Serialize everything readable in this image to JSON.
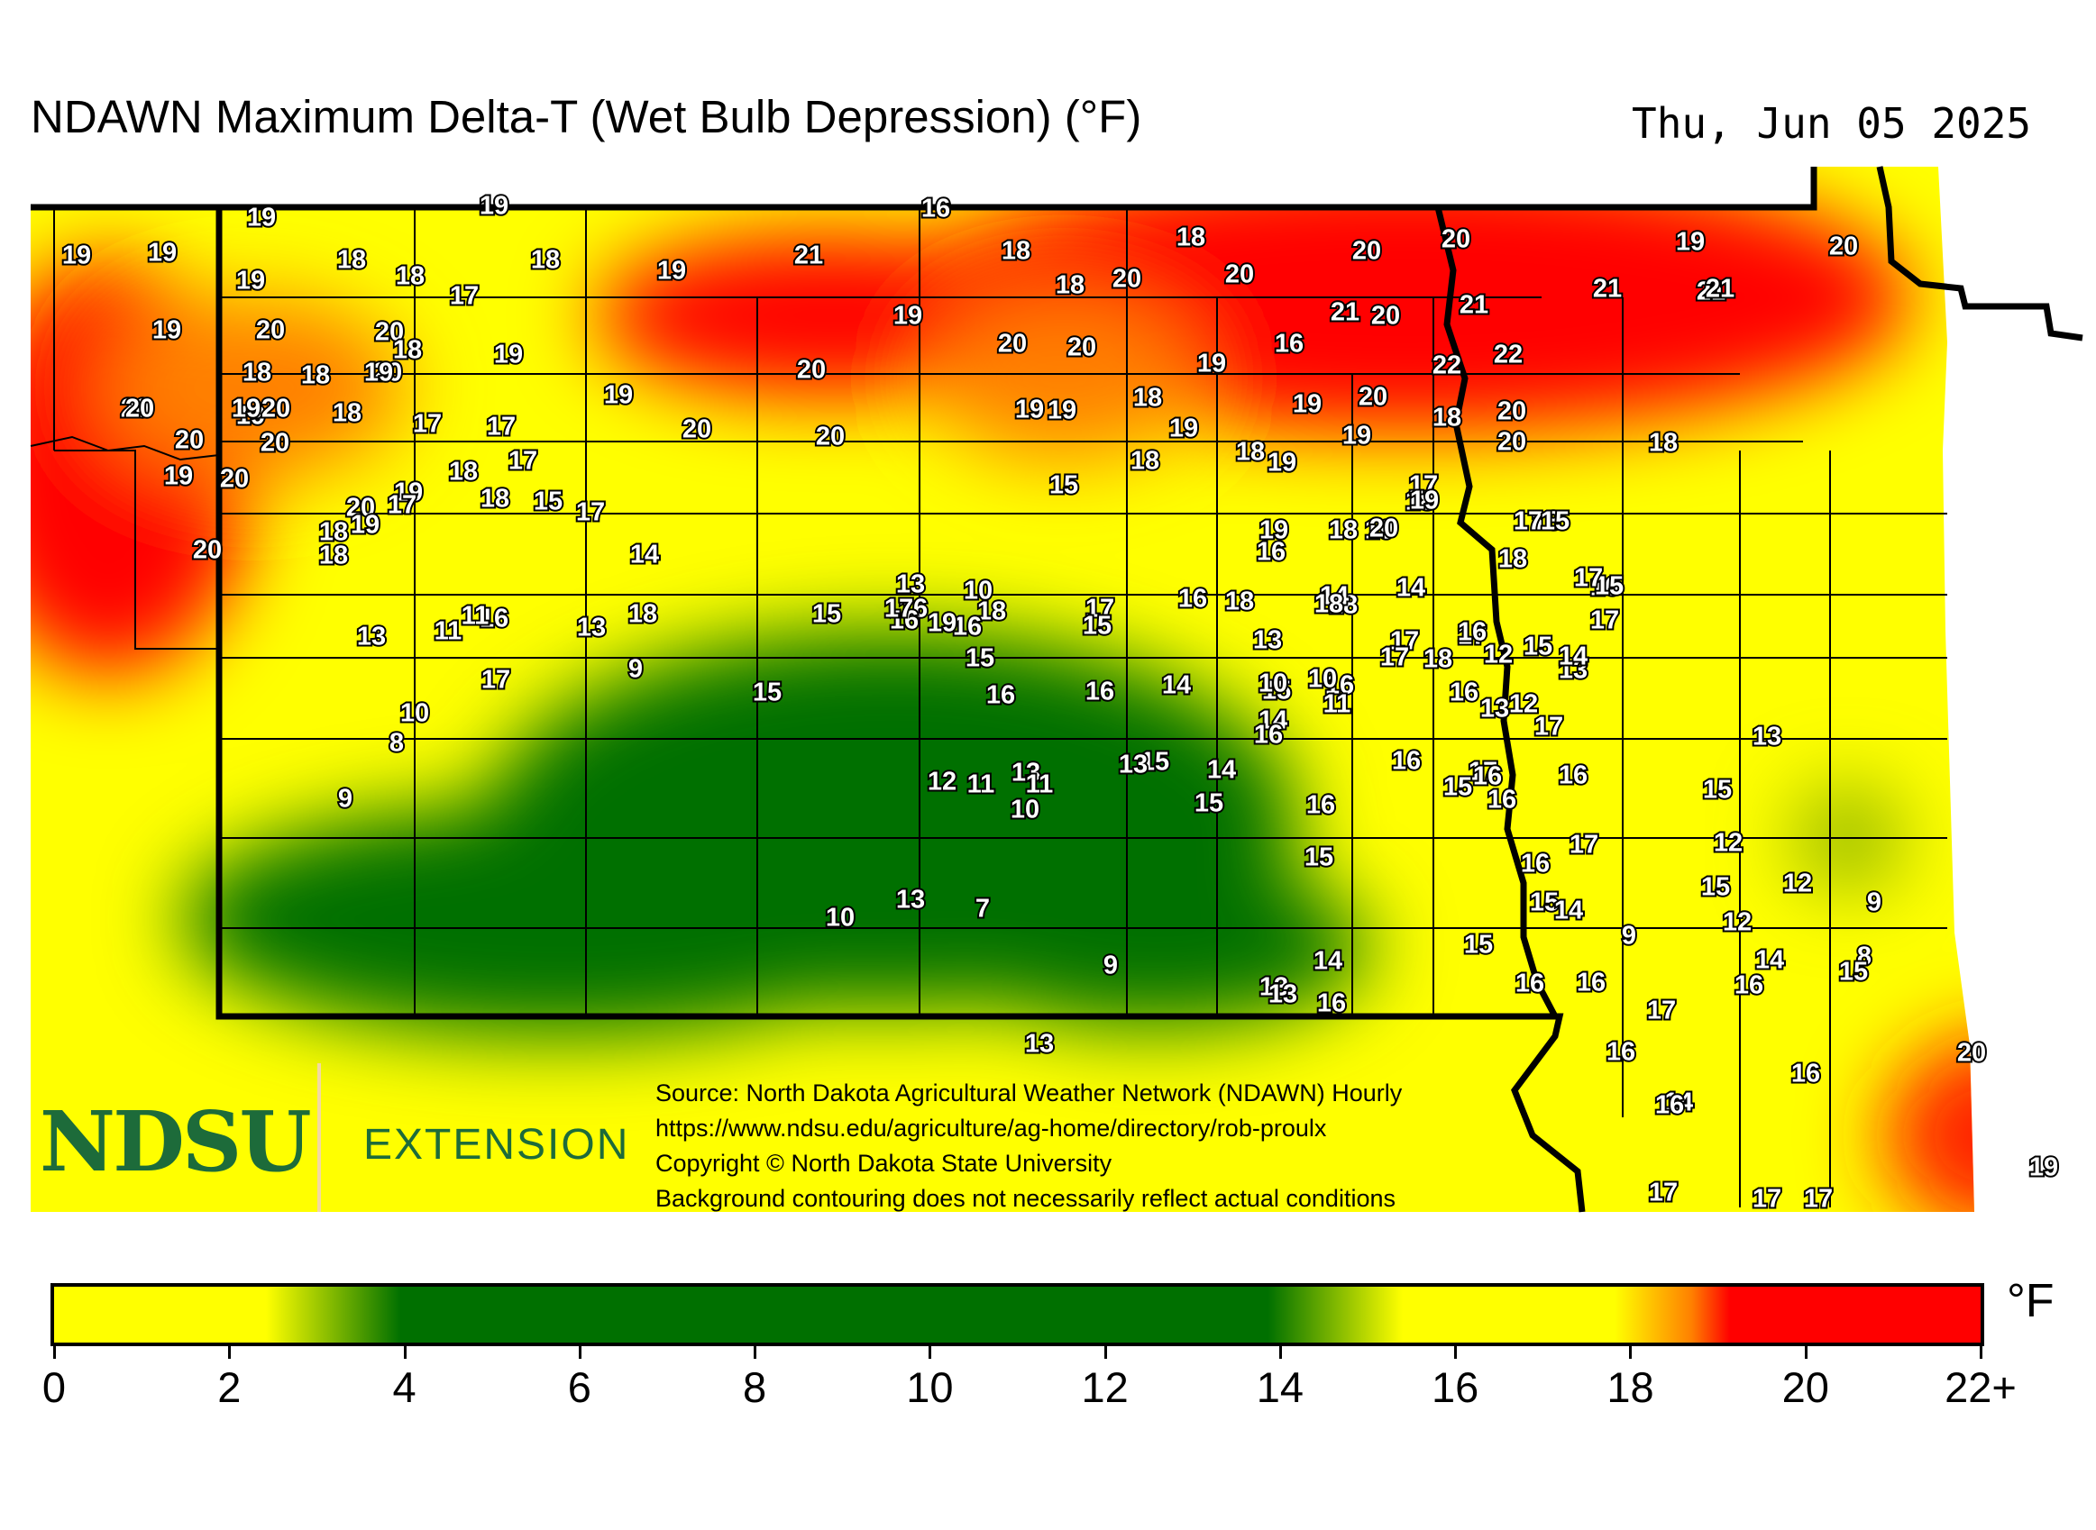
{
  "title": "NDAWN Maximum Delta-T (Wet Bulb Depression) (°F)",
  "date": "Thu, Jun 05 2025",
  "logo": {
    "name": "NDSU",
    "extension": "EXTENSION"
  },
  "info_lines": [
    "Source: North Dakota Agricultural Weather Network (NDAWN) Hourly",
    "https://www.ndsu.edu/agriculture/ag-home/directory/rob-proulx",
    "Copyright © North Dakota State University",
    "Background contouring does not necessarily reflect actual conditions"
  ],
  "legend": {
    "unit": "°F",
    "ticks": [
      "0",
      "2",
      "4",
      "6",
      "8",
      "10",
      "12",
      "14",
      "16",
      "18",
      "20",
      "22+"
    ],
    "colors": {
      "low": "#ffff00",
      "mid": "#007000",
      "high": "#ff0000",
      "orange": "#ff8000"
    }
  },
  "stations": [
    {
      "v": "19"
    },
    {
      "v": "19"
    },
    {
      "v": "19"
    },
    {
      "v": "19"
    },
    {
      "v": "20"
    },
    {
      "v": "20"
    },
    {
      "v": "20"
    },
    {
      "v": "20"
    },
    {
      "v": "19"
    },
    {
      "v": "18"
    },
    {
      "v": "16"
    },
    {
      "v": "19"
    },
    {
      "v": "18"
    },
    {
      "v": "18"
    },
    {
      "v": "17"
    },
    {
      "v": "18"
    },
    {
      "v": "19"
    },
    {
      "v": "21"
    },
    {
      "v": "18"
    },
    {
      "v": "18"
    },
    {
      "v": "20"
    },
    {
      "v": "18"
    },
    {
      "v": "20"
    },
    {
      "v": "20"
    },
    {
      "v": "20"
    },
    {
      "v": "19"
    },
    {
      "v": "20"
    },
    {
      "v": "21"
    },
    {
      "v": "20"
    },
    {
      "v": "21"
    },
    {
      "v": "21"
    },
    {
      "v": "21"
    },
    {
      "v": "19"
    },
    {
      "v": "20"
    },
    {
      "v": "18"
    },
    {
      "v": "19"
    },
    {
      "v": "18"
    },
    {
      "v": "19"
    },
    {
      "v": "20"
    },
    {
      "v": "21"
    },
    {
      "v": "20"
    },
    {
      "v": "19"
    },
    {
      "v": "16"
    },
    {
      "v": "22"
    },
    {
      "v": "22"
    },
    {
      "v": "19"
    },
    {
      "v": "19"
    },
    {
      "v": "20"
    },
    {
      "v": "20"
    },
    {
      "v": "19"
    },
    {
      "v": "18"
    },
    {
      "v": "19"
    },
    {
      "v": "18"
    },
    {
      "v": "20"
    },
    {
      "v": "20"
    },
    {
      "v": "19"
    },
    {
      "v": "18"
    },
    {
      "v": "17"
    },
    {
      "v": "17"
    },
    {
      "v": "20"
    },
    {
      "v": "20"
    },
    {
      "v": "19"
    },
    {
      "v": "20"
    },
    {
      "v": "19"
    },
    {
      "v": "20"
    },
    {
      "v": "20"
    },
    {
      "v": "18"
    },
    {
      "v": "17"
    },
    {
      "v": "18"
    },
    {
      "v": "18"
    },
    {
      "v": "19"
    },
    {
      "v": "19"
    },
    {
      "v": "20"
    },
    {
      "v": "19"
    },
    {
      "v": "18"
    },
    {
      "v": "18"
    },
    {
      "v": "19"
    },
    {
      "v": "18"
    },
    {
      "v": "15"
    },
    {
      "v": "17"
    },
    {
      "v": "18"
    },
    {
      "v": "17"
    },
    {
      "v": "19"
    },
    {
      "v": "19"
    },
    {
      "v": "18"
    },
    {
      "v": "18"
    },
    {
      "v": "19"
    },
    {
      "v": "20"
    },
    {
      "v": "20"
    },
    {
      "v": "19"
    },
    {
      "v": "17"
    },
    {
      "v": "18"
    },
    {
      "v": "20"
    },
    {
      "v": "14"
    },
    {
      "v": "16"
    },
    {
      "v": "16"
    },
    {
      "v": "15"
    },
    {
      "v": "16"
    },
    {
      "v": "18"
    },
    {
      "v": "18"
    },
    {
      "v": "18"
    },
    {
      "v": "18"
    },
    {
      "v": "17"
    },
    {
      "v": "15"
    },
    {
      "v": "15"
    },
    {
      "v": "14"
    },
    {
      "v": "14"
    },
    {
      "v": "13"
    },
    {
      "v": "13"
    },
    {
      "v": "13"
    },
    {
      "v": "16"
    },
    {
      "v": "18"
    },
    {
      "v": "16"
    },
    {
      "v": "15"
    },
    {
      "v": "16"
    },
    {
      "v": "16"
    },
    {
      "v": "17"
    },
    {
      "v": "19"
    },
    {
      "v": "17"
    },
    {
      "v": "18"
    },
    {
      "v": "15"
    },
    {
      "v": "13"
    },
    {
      "v": "9"
    },
    {
      "v": "13"
    },
    {
      "v": "10"
    },
    {
      "v": "14"
    },
    {
      "v": "15"
    },
    {
      "v": "16"
    },
    {
      "v": "17"
    },
    {
      "v": "17"
    },
    {
      "v": "18"
    },
    {
      "v": "14"
    },
    {
      "v": "15"
    },
    {
      "v": "13"
    },
    {
      "v": "12"
    },
    {
      "v": "17"
    },
    {
      "v": "17"
    },
    {
      "v": "17"
    },
    {
      "v": "15"
    },
    {
      "v": "16"
    },
    {
      "v": "16"
    },
    {
      "v": "15"
    },
    {
      "v": "11"
    },
    {
      "v": "11"
    },
    {
      "v": "13"
    },
    {
      "v": "16"
    },
    {
      "v": "17"
    },
    {
      "v": "17"
    },
    {
      "v": "16"
    },
    {
      "v": "12"
    },
    {
      "v": "10"
    },
    {
      "v": "10"
    },
    {
      "v": "11"
    },
    {
      "v": "14"
    },
    {
      "v": "16"
    },
    {
      "v": "16"
    },
    {
      "v": "17"
    },
    {
      "v": "15"
    },
    {
      "v": "10"
    },
    {
      "v": "16"
    },
    {
      "v": "12"
    },
    {
      "v": "13"
    },
    {
      "v": "11"
    },
    {
      "v": "15"
    },
    {
      "v": "15"
    },
    {
      "v": "16"
    },
    {
      "v": "15"
    },
    {
      "v": "16"
    },
    {
      "v": "9"
    },
    {
      "v": "10"
    },
    {
      "v": "11"
    },
    {
      "v": "13"
    },
    {
      "v": "14"
    },
    {
      "v": "15"
    },
    {
      "v": "16"
    },
    {
      "v": "17"
    },
    {
      "v": "12"
    },
    {
      "v": "12"
    },
    {
      "v": "9"
    },
    {
      "v": "8"
    },
    {
      "v": "13"
    },
    {
      "v": "13"
    },
    {
      "v": "16"
    },
    {
      "v": "15"
    },
    {
      "v": "15"
    },
    {
      "v": "15"
    },
    {
      "v": "14"
    },
    {
      "v": "12"
    },
    {
      "v": "8"
    },
    {
      "v": "9"
    },
    {
      "v": "16"
    },
    {
      "v": "15"
    },
    {
      "v": "14"
    },
    {
      "v": "10"
    },
    {
      "v": "7"
    },
    {
      "v": "9"
    },
    {
      "v": "13"
    },
    {
      "v": "14"
    },
    {
      "v": "13"
    },
    {
      "v": "16"
    },
    {
      "v": "16"
    },
    {
      "v": "16"
    },
    {
      "v": "17"
    },
    {
      "v": "16"
    },
    {
      "v": "20"
    },
    {
      "v": "16"
    },
    {
      "v": "14"
    },
    {
      "v": "16"
    },
    {
      "v": "19"
    },
    {
      "v": "17"
    },
    {
      "v": "17"
    },
    {
      "v": "17"
    }
  ]
}
